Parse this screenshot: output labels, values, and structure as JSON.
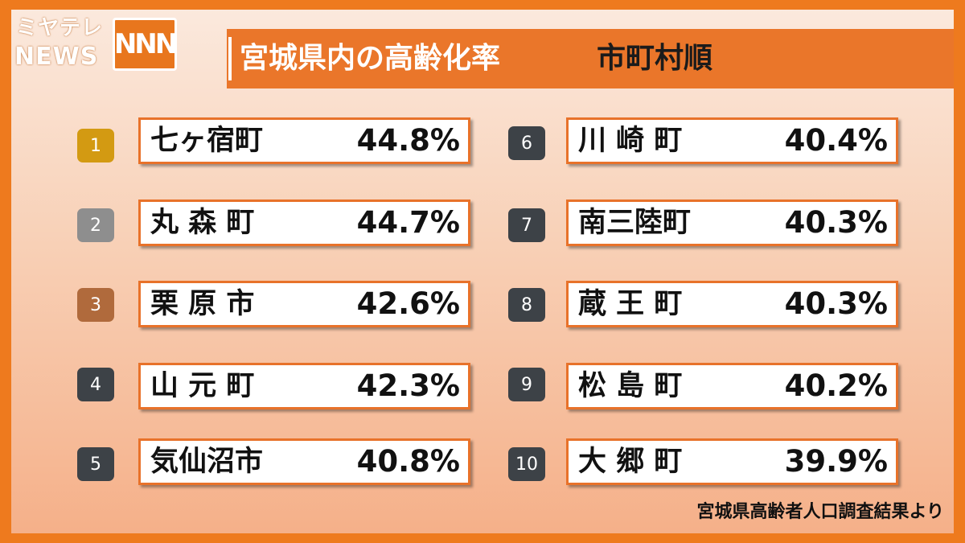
{
  "logo": {
    "line1": "ミヤテレ",
    "line2": "NEWS",
    "mark": "NNN"
  },
  "title": {
    "main": "宮城県内の高齢化率",
    "sub": "市町村順"
  },
  "colors": {
    "frame": "#ee7a1e",
    "title_bar": "#ea762a",
    "rank1": "#d39a12",
    "rank2": "#8e8e8e",
    "rank3": "#b06a3c",
    "rank_other": "#3d4247",
    "box_border": "#e8722a"
  },
  "rankings": [
    {
      "rank": "1",
      "name": "七ヶ宿町",
      "rate": "44.8%"
    },
    {
      "rank": "2",
      "name": "丸 森 町",
      "rate": "44.7%"
    },
    {
      "rank": "3",
      "name": "栗 原 市",
      "rate": "42.6%"
    },
    {
      "rank": "4",
      "name": "山 元 町",
      "rate": "42.3%"
    },
    {
      "rank": "5",
      "name": "気仙沼市",
      "rate": "40.8%"
    },
    {
      "rank": "6",
      "name": "川 崎 町",
      "rate": "40.4%"
    },
    {
      "rank": "7",
      "name": "南三陸町",
      "rate": "40.3%"
    },
    {
      "rank": "8",
      "name": "蔵 王 町",
      "rate": "40.3%"
    },
    {
      "rank": "9",
      "name": "松 島 町",
      "rate": "40.2%"
    },
    {
      "rank": "10",
      "name": "大 郷 町",
      "rate": "39.9%"
    }
  ],
  "source": "宮城県高齢者人口調査結果より"
}
